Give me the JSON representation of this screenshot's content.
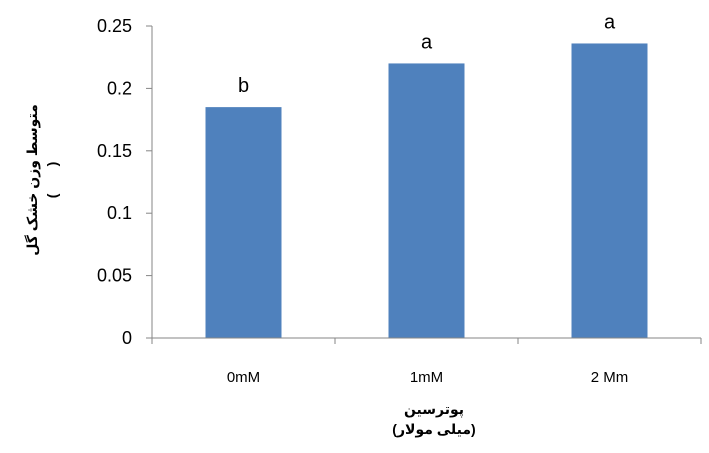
{
  "chart_data": {
    "type": "bar",
    "categories": [
      "0mM",
      "1mM",
      "2 Mm"
    ],
    "values": [
      0.185,
      0.22,
      0.236
    ],
    "data_labels": [
      "b",
      "a",
      "a"
    ],
    "title": "",
    "xlabel": [
      "پوترسین",
      "(میلی مولار)"
    ],
    "ylabel": [
      "متوسط وزن خشک گل",
      "(       )"
    ],
    "ylim": [
      0,
      0.25
    ],
    "yticks": [
      "0",
      "0.05",
      "0.1",
      "0.15",
      "0.2",
      "0.25"
    ],
    "grid": false,
    "legend": "none",
    "colors": {
      "bar": "#4f81bd",
      "axis": "#868686",
      "text": "#000000"
    }
  }
}
